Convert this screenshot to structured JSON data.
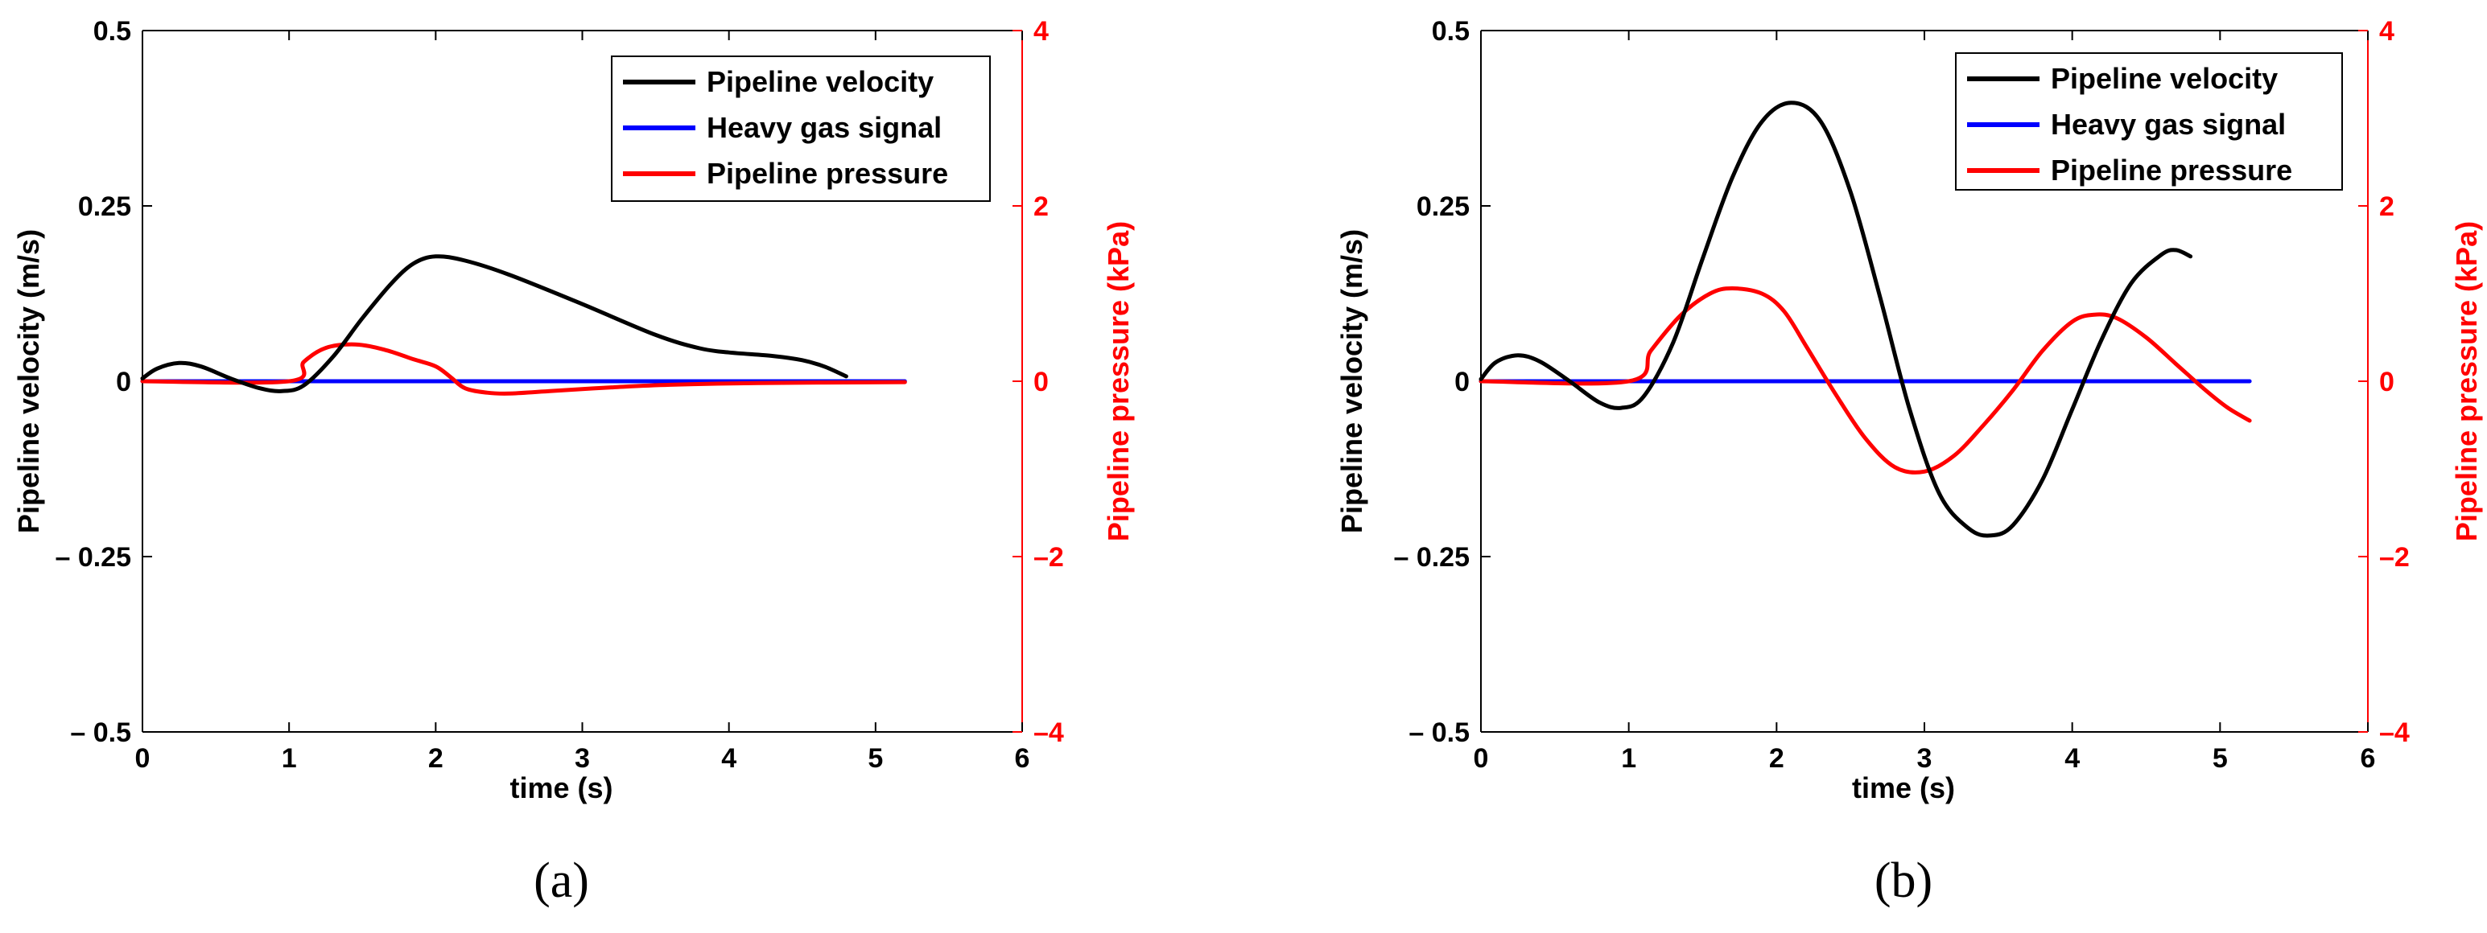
{
  "colors": {
    "velocity": "#000000",
    "gas": "#0000ff",
    "pressure": "#ff0000",
    "axis": "#000000",
    "right_axis": "#ff0000"
  },
  "chart_data": [
    {
      "type": "line",
      "panel": "a",
      "caption": "(a)",
      "xlabel": "time (s)",
      "ylabel_left": "Pipeline velocity (m/s)",
      "ylabel_right": "Pipeline pressure (kPa)",
      "xlim": [
        0,
        6
      ],
      "ylim_left": [
        -0.5,
        0.5
      ],
      "ylim_right": [
        -4,
        4
      ],
      "xticks": [
        0,
        1,
        2,
        3,
        4,
        5,
        6
      ],
      "xtick_labels": [
        "0",
        "1",
        "2",
        "3",
        "4",
        "5",
        "6"
      ],
      "yticks_left": [
        -0.5,
        -0.25,
        0,
        0.25,
        0.5
      ],
      "ytick_labels_left": [
        "– 0.5",
        "– 0.25",
        "0",
        "0.25",
        "0.5"
      ],
      "yticks_right": [
        -4,
        -2,
        0,
        2,
        4
      ],
      "ytick_labels_right": [
        "–4",
        "–2",
        "0",
        "2",
        "4"
      ],
      "legend_position": "top-right",
      "series": [
        {
          "name": "Pipeline velocity",
          "axis": "left",
          "color_key": "velocity",
          "x": [
            0,
            0.1,
            0.25,
            0.4,
            0.6,
            0.8,
            0.95,
            1.1,
            1.3,
            1.5,
            1.7,
            1.85,
            2.0,
            2.2,
            2.5,
            3.0,
            3.5,
            3.8,
            4.0,
            4.3,
            4.5,
            4.65,
            4.8
          ],
          "y": [
            0.004,
            0.018,
            0.026,
            0.021,
            0.004,
            -0.01,
            -0.014,
            -0.006,
            0.035,
            0.09,
            0.14,
            0.168,
            0.178,
            0.172,
            0.152,
            0.11,
            0.066,
            0.047,
            0.041,
            0.036,
            0.03,
            0.021,
            0.007
          ]
        },
        {
          "name": "Heavy gas signal",
          "axis": "left",
          "color_key": "gas",
          "x": [
            0,
            1,
            2,
            3,
            4,
            5,
            5.2
          ],
          "y": [
            0,
            0,
            0,
            0,
            0,
            0,
            0
          ]
        },
        {
          "name": "Pipeline pressure",
          "axis": "right",
          "color_key": "pressure",
          "x": [
            0,
            1.0,
            1.1,
            1.25,
            1.45,
            1.65,
            1.85,
            2.0,
            2.1,
            2.2,
            2.35,
            2.5,
            2.8,
            3.2,
            3.6,
            4.2,
            5.2
          ],
          "y": [
            0,
            0,
            0.22,
            0.38,
            0.42,
            0.36,
            0.25,
            0.17,
            0.05,
            -0.08,
            -0.13,
            -0.14,
            -0.11,
            -0.07,
            -0.04,
            -0.02,
            -0.01
          ]
        }
      ]
    },
    {
      "type": "line",
      "panel": "b",
      "caption": "(b)",
      "xlabel": "time (s)",
      "ylabel_left": "Pipeline velocity (m/s)",
      "ylabel_right": "Pipeline pressure (kPa)",
      "xlim": [
        0,
        6
      ],
      "ylim_left": [
        -0.5,
        0.5
      ],
      "ylim_right": [
        -4,
        4
      ],
      "xticks": [
        0,
        1,
        2,
        3,
        4,
        5,
        6
      ],
      "xtick_labels": [
        "0",
        "1",
        "2",
        "3",
        "4",
        "5",
        "6"
      ],
      "yticks_left": [
        -0.5,
        -0.25,
        0,
        0.25,
        0.5
      ],
      "ytick_labels_left": [
        "– 0.5",
        "– 0.25",
        "0",
        "0.25",
        "0.5"
      ],
      "yticks_right": [
        -4,
        -2,
        0,
        2,
        4
      ],
      "ytick_labels_right": [
        "–4",
        "–2",
        "0",
        "2",
        "4"
      ],
      "legend_position": "top-right",
      "series": [
        {
          "name": "Pipeline velocity",
          "axis": "left",
          "color_key": "velocity",
          "x": [
            0,
            0.1,
            0.25,
            0.4,
            0.6,
            0.8,
            0.95,
            1.1,
            1.3,
            1.5,
            1.7,
            1.9,
            2.1,
            2.3,
            2.5,
            2.7,
            2.9,
            3.1,
            3.3,
            3.45,
            3.6,
            3.8,
            4.0,
            4.2,
            4.4,
            4.6,
            4.7,
            4.8
          ],
          "y": [
            0.003,
            0.027,
            0.037,
            0.028,
            0.0,
            -0.03,
            -0.038,
            -0.022,
            0.055,
            0.175,
            0.29,
            0.37,
            0.397,
            0.37,
            0.27,
            0.12,
            -0.04,
            -0.16,
            -0.21,
            -0.22,
            -0.205,
            -0.14,
            -0.04,
            0.06,
            0.14,
            0.18,
            0.187,
            0.178
          ]
        },
        {
          "name": "Heavy gas signal",
          "axis": "left",
          "color_key": "gas",
          "x": [
            0,
            1,
            2,
            3,
            4,
            5,
            5.2
          ],
          "y": [
            0,
            0,
            0,
            0,
            0,
            0,
            0
          ]
        },
        {
          "name": "Pipeline pressure",
          "axis": "right",
          "color_key": "pressure",
          "x": [
            0,
            1.0,
            1.15,
            1.35,
            1.55,
            1.7,
            1.9,
            2.05,
            2.2,
            2.4,
            2.6,
            2.8,
            3.0,
            3.2,
            3.4,
            3.6,
            3.8,
            4.0,
            4.15,
            4.3,
            4.5,
            4.7,
            4.9,
            5.05,
            5.2
          ],
          "y": [
            0,
            0,
            0.35,
            0.75,
            1.0,
            1.06,
            1.0,
            0.8,
            0.4,
            -0.15,
            -0.65,
            -0.98,
            -1.03,
            -0.85,
            -0.5,
            -0.1,
            0.35,
            0.68,
            0.76,
            0.72,
            0.5,
            0.2,
            -0.1,
            -0.3,
            -0.45
          ]
        }
      ]
    }
  ]
}
